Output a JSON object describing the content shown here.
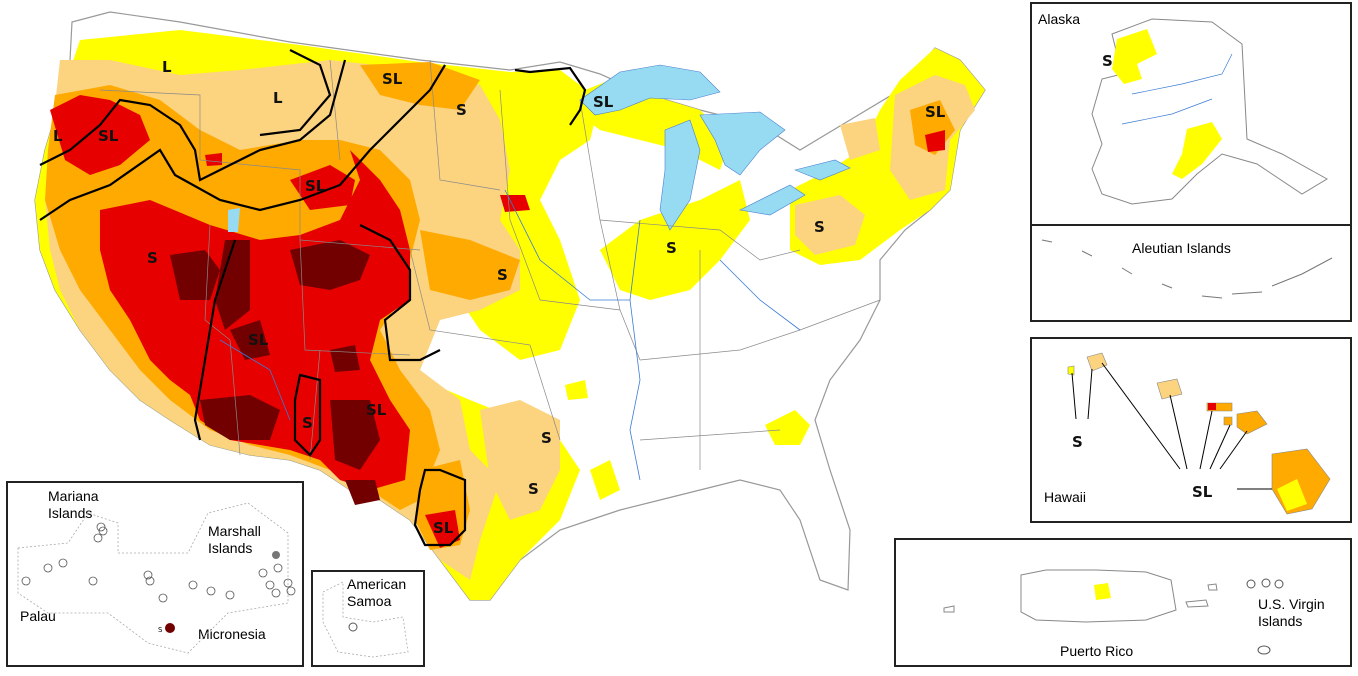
{
  "colors": {
    "D0": "#ffff00",
    "D1": "#fcd37f",
    "D2": "#ffaa00",
    "D3": "#e60000",
    "D4": "#730000",
    "water": "#97dbf2",
    "border": "#888888",
    "impact_line": "#000000"
  },
  "conus": {
    "impact_labels": [
      "L",
      "L",
      "SL",
      "L",
      "SL",
      "S",
      "SL",
      "S",
      "S",
      "SL",
      "S",
      "S",
      "SL",
      "S",
      "S",
      "SL",
      "SL",
      "S",
      "SL",
      "SL"
    ]
  },
  "alaska": {
    "title": "Alaska",
    "impact_label": "S"
  },
  "aleutian": {
    "title": "Aleutian Islands"
  },
  "hawaii": {
    "title": "Hawaii",
    "impact_labels": [
      "S",
      "SL"
    ]
  },
  "pacific": {
    "mariana": "Mariana\nIslands",
    "marshall": "Marshall\nIslands",
    "palau": "Palau",
    "micronesia": "Micronesia",
    "micronesia_small_label": "S"
  },
  "samoa": {
    "title": "American\nSamoa"
  },
  "puerto_rico": {
    "title": "Puerto Rico"
  },
  "usvi": {
    "title": "U.S. Virgin\nIslands"
  }
}
